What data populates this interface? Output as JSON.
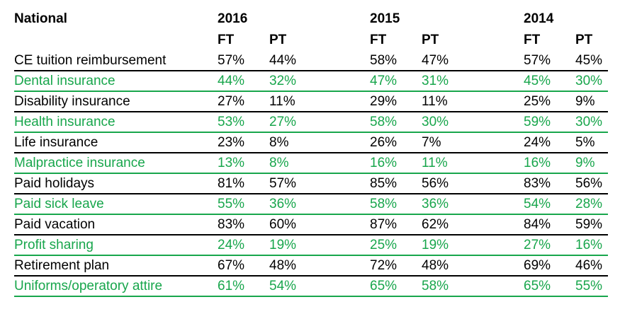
{
  "chart_data": {
    "type": "table",
    "title": "National",
    "colors": {
      "green_row": "#18a64c",
      "black_row": "#000000"
    },
    "year_groups": [
      {
        "year": "2016",
        "ft_label": "FT",
        "pt_label": "PT"
      },
      {
        "year": "2015",
        "ft_label": "FT",
        "pt_label": "PT"
      },
      {
        "year": "2014",
        "ft_label": "FT",
        "pt_label": "PT"
      }
    ],
    "columns": [
      "2016 FT",
      "2016 PT",
      "2015 FT",
      "2015 PT",
      "2014 FT",
      "2014 PT"
    ],
    "rows": [
      {
        "label": "CE tuition reimbursement",
        "color": "black",
        "values": [
          "57%",
          "44%",
          "58%",
          "47%",
          "57%",
          "45%"
        ]
      },
      {
        "label": "Dental insurance",
        "color": "green",
        "values": [
          "44%",
          "32%",
          "47%",
          "31%",
          "45%",
          "30%"
        ]
      },
      {
        "label": "Disability insurance",
        "color": "black",
        "values": [
          "27%",
          "11%",
          "29%",
          "11%",
          "25%",
          "9%"
        ]
      },
      {
        "label": "Health insurance",
        "color": "green",
        "values": [
          "53%",
          "27%",
          "58%",
          "30%",
          "59%",
          "30%"
        ]
      },
      {
        "label": "Life insurance",
        "color": "black",
        "values": [
          "23%",
          "8%",
          "26%",
          "7%",
          "24%",
          "5%"
        ]
      },
      {
        "label": "Malpractice insurance",
        "color": "green",
        "values": [
          "13%",
          "8%",
          "16%",
          "11%",
          "16%",
          "9%"
        ]
      },
      {
        "label": "Paid holidays",
        "color": "black",
        "values": [
          "81%",
          "57%",
          "85%",
          "56%",
          "83%",
          "56%"
        ]
      },
      {
        "label": "Paid sick leave",
        "color": "green",
        "values": [
          "55%",
          "36%",
          "58%",
          "36%",
          "54%",
          "28%"
        ]
      },
      {
        "label": "Paid vacation",
        "color": "black",
        "values": [
          "83%",
          "60%",
          "87%",
          "62%",
          "84%",
          "59%"
        ]
      },
      {
        "label": "Profit sharing",
        "color": "green",
        "values": [
          "24%",
          "19%",
          "25%",
          "19%",
          "27%",
          "16%"
        ]
      },
      {
        "label": "Retirement plan",
        "color": "black",
        "values": [
          "67%",
          "48%",
          "72%",
          "48%",
          "69%",
          "46%"
        ]
      },
      {
        "label": "Uniforms/operatory attire",
        "color": "green",
        "values": [
          "61%",
          "54%",
          "65%",
          "58%",
          "65%",
          "55%"
        ]
      }
    ]
  }
}
